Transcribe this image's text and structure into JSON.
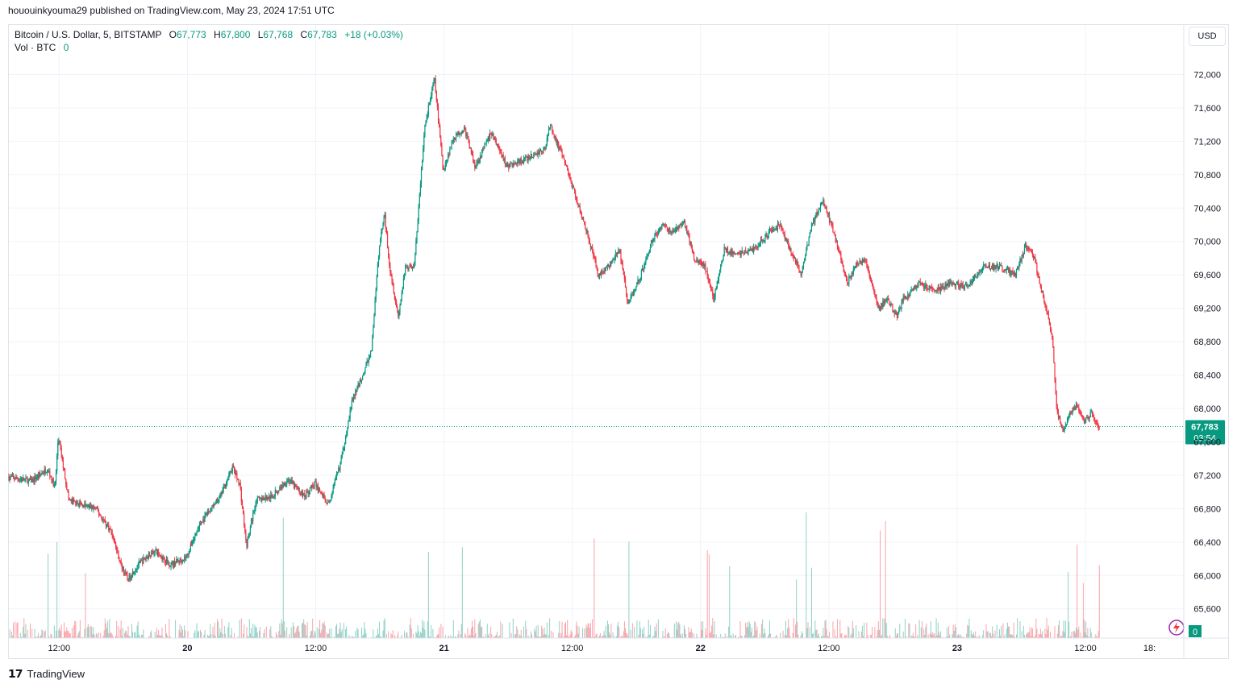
{
  "caption": "hououinkyouma29 published on TradingView.com, May 23, 2024 17:51 UTC",
  "legend": {
    "symbol": "Bitcoin / U.S. Dollar, 5, BITSTAMP",
    "open_label": "O",
    "open": "67,773",
    "high_label": "H",
    "high": "67,800",
    "low_label": "L",
    "low": "67,768",
    "close_label": "C",
    "close": "67,783",
    "change": "+18 (+0.03%)",
    "vol_label": "Vol · BTC",
    "vol_value": "0"
  },
  "currency_button": "USD",
  "price_badge": {
    "price": "67,783",
    "countdown": "03:54"
  },
  "volume_badge": "0",
  "footer": {
    "brand": "TradingView"
  },
  "colors": {
    "up": "#089981",
    "down": "#f23645",
    "grid": "#f0f3fa",
    "text": "#131722"
  },
  "chart_data": {
    "type": "candlestick",
    "title": "Bitcoin / U.S. Dollar, 5, BITSTAMP",
    "y_axis_side": "right",
    "yticks": [
      65600,
      66000,
      66400,
      66800,
      67200,
      67600,
      68000,
      68400,
      68800,
      69200,
      69600,
      70000,
      70400,
      70800,
      71200,
      71600,
      72000
    ],
    "ylim": [
      65250,
      72400
    ],
    "x_ticks": [
      {
        "label": "12:00",
        "hour": 12
      },
      {
        "label": "20",
        "hour": 24
      },
      {
        "label": "12:00",
        "hour": 36
      },
      {
        "label": "21",
        "hour": 48
      },
      {
        "label": "12:00",
        "hour": 60
      },
      {
        "label": "22",
        "hour": 72
      },
      {
        "label": "12:00",
        "hour": 84
      },
      {
        "label": "23",
        "hour": 96
      },
      {
        "label": "12:00",
        "hour": 108
      },
      {
        "label": "18:",
        "hour": 114
      }
    ],
    "xlim_hours": [
      7.3,
      117.2
    ],
    "last_price": 67783,
    "price_path": [
      {
        "hour": 7.3,
        "price": 67180
      },
      {
        "hour": 9.5,
        "price": 67130
      },
      {
        "hour": 11,
        "price": 67280
      },
      {
        "hour": 11.7,
        "price": 67050
      },
      {
        "hour": 12.0,
        "price": 67660
      },
      {
        "hour": 13,
        "price": 66900
      },
      {
        "hour": 14,
        "price": 66850
      },
      {
        "hour": 15.5,
        "price": 66800
      },
      {
        "hour": 17,
        "price": 66520
      },
      {
        "hour": 17.8,
        "price": 66150
      },
      {
        "hour": 18.5,
        "price": 65950
      },
      {
        "hour": 19.5,
        "price": 66130
      },
      {
        "hour": 21,
        "price": 66300
      },
      {
        "hour": 22.5,
        "price": 66130
      },
      {
        "hour": 24,
        "price": 66220
      },
      {
        "hour": 25,
        "price": 66550
      },
      {
        "hour": 26,
        "price": 66750
      },
      {
        "hour": 27,
        "price": 66900
      },
      {
        "hour": 28.3,
        "price": 67300
      },
      {
        "hour": 29,
        "price": 67080
      },
      {
        "hour": 29.6,
        "price": 66350
      },
      {
        "hour": 30.5,
        "price": 66900
      },
      {
        "hour": 32,
        "price": 66950
      },
      {
        "hour": 33.5,
        "price": 67150
      },
      {
        "hour": 35,
        "price": 66950
      },
      {
        "hour": 36,
        "price": 67100
      },
      {
        "hour": 37.3,
        "price": 66850
      },
      {
        "hour": 38.5,
        "price": 67400
      },
      {
        "hour": 39.5,
        "price": 68100
      },
      {
        "hour": 40.5,
        "price": 68400
      },
      {
        "hour": 41.3,
        "price": 68700
      },
      {
        "hour": 42,
        "price": 69900
      },
      {
        "hour": 42.5,
        "price": 70350
      },
      {
        "hour": 43,
        "price": 69700
      },
      {
        "hour": 43.8,
        "price": 69100
      },
      {
        "hour": 44.5,
        "price": 69700
      },
      {
        "hour": 45.3,
        "price": 69700
      },
      {
        "hour": 46.3,
        "price": 71400
      },
      {
        "hour": 47.2,
        "price": 71950
      },
      {
        "hour": 48,
        "price": 70850
      },
      {
        "hour": 49,
        "price": 71250
      },
      {
        "hour": 50,
        "price": 71350
      },
      {
        "hour": 51,
        "price": 70900
      },
      {
        "hour": 52.5,
        "price": 71300
      },
      {
        "hour": 54,
        "price": 70900
      },
      {
        "hour": 56,
        "price": 71000
      },
      {
        "hour": 57.5,
        "price": 71100
      },
      {
        "hour": 58,
        "price": 71400
      },
      {
        "hour": 59.5,
        "price": 70900
      },
      {
        "hour": 60.5,
        "price": 70500
      },
      {
        "hour": 61.5,
        "price": 70100
      },
      {
        "hour": 62.5,
        "price": 69600
      },
      {
        "hour": 63.5,
        "price": 69700
      },
      {
        "hour": 64.5,
        "price": 69900
      },
      {
        "hour": 65.3,
        "price": 69250
      },
      {
        "hour": 66.5,
        "price": 69600
      },
      {
        "hour": 67.5,
        "price": 70000
      },
      {
        "hour": 68.5,
        "price": 70200
      },
      {
        "hour": 69.5,
        "price": 70100
      },
      {
        "hour": 70.5,
        "price": 70250
      },
      {
        "hour": 71.5,
        "price": 69800
      },
      {
        "hour": 72.5,
        "price": 69700
      },
      {
        "hour": 73.3,
        "price": 69300
      },
      {
        "hour": 74.3,
        "price": 69900
      },
      {
        "hour": 75.5,
        "price": 69850
      },
      {
        "hour": 77,
        "price": 69900
      },
      {
        "hour": 78.5,
        "price": 70100
      },
      {
        "hour": 79.5,
        "price": 70200
      },
      {
        "hour": 80.5,
        "price": 69900
      },
      {
        "hour": 81.5,
        "price": 69600
      },
      {
        "hour": 82.5,
        "price": 70200
      },
      {
        "hour": 83.5,
        "price": 70500
      },
      {
        "hour": 84.2,
        "price": 70250
      },
      {
        "hour": 85,
        "price": 69900
      },
      {
        "hour": 85.8,
        "price": 69500
      },
      {
        "hour": 86.5,
        "price": 69700
      },
      {
        "hour": 87.5,
        "price": 69800
      },
      {
        "hour": 88.7,
        "price": 69200
      },
      {
        "hour": 89.5,
        "price": 69300
      },
      {
        "hour": 90.5,
        "price": 69100
      },
      {
        "hour": 91,
        "price": 69300
      },
      {
        "hour": 92.5,
        "price": 69500
      },
      {
        "hour": 94,
        "price": 69400
      },
      {
        "hour": 95.5,
        "price": 69500
      },
      {
        "hour": 97,
        "price": 69450
      },
      {
        "hour": 98.5,
        "price": 69700
      },
      {
        "hour": 100,
        "price": 69700
      },
      {
        "hour": 101.5,
        "price": 69600
      },
      {
        "hour": 102.5,
        "price": 69950
      },
      {
        "hour": 103.3,
        "price": 69800
      },
      {
        "hour": 104,
        "price": 69400
      },
      {
        "hour": 104.6,
        "price": 69100
      },
      {
        "hour": 105,
        "price": 68800
      },
      {
        "hour": 105.4,
        "price": 68000
      },
      {
        "hour": 106,
        "price": 67700
      },
      {
        "hour": 106.6,
        "price": 67950
      },
      {
        "hour": 107.3,
        "price": 68050
      },
      {
        "hour": 108,
        "price": 67850
      },
      {
        "hour": 108.6,
        "price": 67950
      },
      {
        "hour": 109.3,
        "price": 67783
      }
    ]
  }
}
